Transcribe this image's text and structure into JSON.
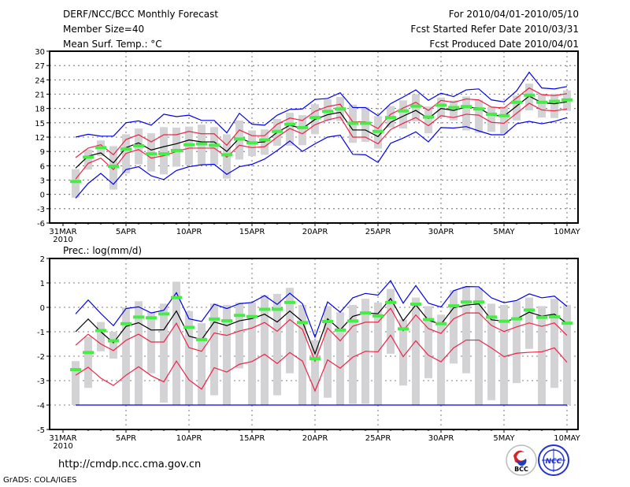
{
  "header": {
    "title": "DERF/NCC/BCC Monthly Forecast",
    "member_size": "Member Size=40",
    "variable": "Mean Surf. Temp.: °C",
    "period": "For 2010/04/01-2010/05/10",
    "started": "Fcst Started Refer Date 2010/03/31",
    "produced": "Fcst Produced Date 2010/04/01"
  },
  "footer": {
    "url": "http://cmdp.ncc.cma.gov.cn",
    "credit": "GrADS: COLA/IGES",
    "logos": [
      "BCC",
      "NCC"
    ]
  },
  "colors": {
    "obs": "#44ee44",
    "mean": "#000000",
    "spread": "#ee2244",
    "envelope": "#0000ee",
    "range": "#d3d3d6"
  },
  "chart_data": [
    {
      "type": "line",
      "title": "Mean Surf. Temp.: °C",
      "xlabel": "",
      "ylabel": "°C",
      "ylim": [
        -6,
        30
      ],
      "yticks": [
        -6,
        -3,
        0,
        3,
        6,
        9,
        12,
        15,
        18,
        21,
        24,
        27,
        30
      ],
      "xtick_labels": [
        "31MAR",
        "5APR",
        "10APR",
        "15APR",
        "20APR",
        "25APR",
        "30APR",
        "5MAY",
        "10MAY"
      ],
      "xtick_days": [
        0,
        5,
        10,
        15,
        20,
        25,
        30,
        35,
        40
      ],
      "year_label": "2010",
      "grid": true,
      "days": [
        1,
        2,
        3,
        4,
        5,
        6,
        7,
        8,
        9,
        10,
        11,
        12,
        13,
        14,
        15,
        16,
        17,
        18,
        19,
        20,
        21,
        22,
        23,
        24,
        25,
        26,
        27,
        28,
        29,
        30,
        31,
        32,
        33,
        34,
        35,
        36,
        37,
        38,
        39,
        40
      ],
      "range_min": [
        -0.7,
        5.2,
        8.0,
        1.0,
        4.4,
        6.3,
        4.8,
        4.2,
        5.8,
        6.2,
        6.2,
        6.2,
        3.3,
        7.3,
        8.0,
        8.3,
        10.2,
        10.2,
        10.3,
        12.6,
        15.4,
        15.4,
        10.8,
        11.0,
        9.6,
        14.0,
        13.8,
        15.3,
        12.8,
        16.1,
        15.5,
        13.4,
        12.9,
        13.1,
        12.7,
        15.5,
        17.6,
        16.1,
        16.0,
        17.5
      ],
      "range_max": [
        5.3,
        9.4,
        11.3,
        10.1,
        12.6,
        13.8,
        12.8,
        14.1,
        14.0,
        14.2,
        14.6,
        14.1,
        12.6,
        15.5,
        13.4,
        13.6,
        15.8,
        17.1,
        16.6,
        18.9,
        19.9,
        20.4,
        18.8,
        18.3,
        16.4,
        18.5,
        19.7,
        21.0,
        18.4,
        20.3,
        19.7,
        20.5,
        19.8,
        18.4,
        18.4,
        20.7,
        23.2,
        21.1,
        21.1,
        21.8
      ],
      "series": [
        {
          "name": "envelope_upper",
          "color": "#0000ee",
          "values": [
            12.0,
            12.6,
            12.2,
            12.2,
            15.0,
            15.4,
            14.5,
            16.8,
            16.3,
            16.6,
            15.5,
            15.5,
            12.9,
            17.0,
            14.7,
            14.5,
            16.6,
            17.8,
            17.9,
            19.9,
            20.1,
            21.3,
            18.2,
            18.2,
            16.5,
            19.0,
            20.4,
            21.9,
            19.7,
            21.2,
            20.5,
            21.9,
            22.1,
            19.8,
            19.4,
            21.7,
            25.6,
            22.3,
            22.1,
            22.6
          ]
        },
        {
          "name": "envelope_lower",
          "color": "#0000ee",
          "values": [
            -0.8,
            2.3,
            4.4,
            2.1,
            5.2,
            5.8,
            3.9,
            3.1,
            5.0,
            5.8,
            6.2,
            6.3,
            4.2,
            5.8,
            6.3,
            7.4,
            9.2,
            11.2,
            9.0,
            10.6,
            12.0,
            12.4,
            8.4,
            8.3,
            6.7,
            10.7,
            11.8,
            13.1,
            11.0,
            14.0,
            13.9,
            14.2,
            13.3,
            12.5,
            12.5,
            14.8,
            15.3,
            14.8,
            15.3,
            16.1
          ]
        },
        {
          "name": "spread_upper",
          "color": "#ee2244",
          "values": [
            7.7,
            9.7,
            10.4,
            8.3,
            11.5,
            12.5,
            11.0,
            12.5,
            12.5,
            13.2,
            12.7,
            12.7,
            10.3,
            13.5,
            12.3,
            12.3,
            14.7,
            16.0,
            15.5,
            17.4,
            18.4,
            18.9,
            15.2,
            15.2,
            13.8,
            16.8,
            18.1,
            19.3,
            17.6,
            19.7,
            19.3,
            20.0,
            19.8,
            18.3,
            18.1,
            20.2,
            22.3,
            20.9,
            20.7,
            21.1
          ]
        },
        {
          "name": "spread_lower",
          "color": "#ee2244",
          "values": [
            3.2,
            6.5,
            7.6,
            5.2,
            8.6,
            9.4,
            7.6,
            8.1,
            9.0,
            9.7,
            9.7,
            9.7,
            7.8,
            10.3,
            9.8,
            10.0,
            12.0,
            13.8,
            12.7,
            14.6,
            15.6,
            16.2,
            12.0,
            12.0,
            10.6,
            13.6,
            14.9,
            16.1,
            14.4,
            16.5,
            16.1,
            16.8,
            16.6,
            15.1,
            14.9,
            17.0,
            19.1,
            17.7,
            17.5,
            17.9
          ]
        },
        {
          "name": "ensemble_mean",
          "color": "#000000",
          "values": [
            5.5,
            8.0,
            8.7,
            6.6,
            9.8,
            10.8,
            9.3,
            10.0,
            10.6,
            11.4,
            11.0,
            11.0,
            9.0,
            11.8,
            10.8,
            11.0,
            13.0,
            14.5,
            13.8,
            15.7,
            16.7,
            17.2,
            13.5,
            13.5,
            12.1,
            15.1,
            16.4,
            17.6,
            15.9,
            18.0,
            17.6,
            18.3,
            18.1,
            16.6,
            16.4,
            18.5,
            20.6,
            19.2,
            19.0,
            19.4
          ]
        }
      ],
      "observed": [
        2.7,
        7.8,
        9.8,
        5.9,
        9.5,
        10.2,
        8.5,
        8.5,
        9.2,
        10.4,
        10.6,
        10.3,
        8.3,
        11.6,
        10.8,
        11.4,
        13.2,
        14.7,
        14.0,
        16.1,
        17.4,
        17.9,
        14.9,
        14.9,
        13.2,
        16.1,
        17.5,
        18.5,
        16.2,
        18.7,
        18.2,
        18.4,
        17.9,
        16.8,
        16.5,
        19.3,
        20.8,
        19.3,
        19.5,
        19.8
      ]
    },
    {
      "type": "line",
      "title": "Prec.: log(mm/d)",
      "xlabel": "",
      "ylabel": "log(mm/d)",
      "ylim": [
        -5,
        2
      ],
      "yticks": [
        -5,
        -4,
        -3,
        -2,
        -1,
        0,
        1,
        2
      ],
      "xtick_labels": [
        "31MAR",
        "5APR",
        "10APR",
        "15APR",
        "20APR",
        "25APR",
        "30APR",
        "5MAY",
        "10MAY"
      ],
      "xtick_days": [
        0,
        5,
        10,
        15,
        20,
        25,
        30,
        35,
        40
      ],
      "year_label": "2010",
      "grid": true,
      "days": [
        1,
        2,
        3,
        4,
        5,
        6,
        7,
        8,
        9,
        10,
        11,
        12,
        13,
        14,
        15,
        16,
        17,
        18,
        19,
        20,
        21,
        22,
        23,
        24,
        25,
        26,
        27,
        28,
        29,
        30,
        31,
        32,
        33,
        34,
        35,
        36,
        37,
        38,
        39,
        40
      ],
      "range_min": [
        -4,
        -3.3,
        -1.8,
        -2.1,
        -4,
        -4,
        -2.7,
        -3.9,
        -4,
        -4,
        -4,
        -3.6,
        -4,
        -2.5,
        -4,
        -4,
        -3.6,
        -2.7,
        -4,
        -4,
        -3.7,
        -4,
        -3.95,
        -3.95,
        -4,
        -1.9,
        -3.2,
        -4,
        -2.9,
        -4,
        -2.3,
        -2.7,
        -4,
        -3.8,
        -4,
        -3.1,
        -1.7,
        -4,
        -3.3,
        -4
      ],
      "range_max": [
        -2.2,
        -1.2,
        -0.6,
        -1.0,
        0,
        0.25,
        -0.2,
        0.15,
        1.05,
        -0.15,
        -0.65,
        0.15,
        0.1,
        0.2,
        0.2,
        0.5,
        0.55,
        0.8,
        0.1,
        -1.35,
        0.05,
        -0.2,
        0.1,
        0.35,
        0.2,
        0.75,
        -0.5,
        0.4,
        0.05,
        -0.3,
        0.7,
        0.85,
        0.8,
        0.15,
        0.1,
        0.25,
        0.4,
        0.05,
        0.35,
        0.1
      ],
      "series": [
        {
          "name": "envelope_upper",
          "color": "#0000ee",
          "values": [
            -0.27,
            0.3,
            -0.25,
            -0.75,
            -0.05,
            0.02,
            -0.23,
            -0.12,
            0.6,
            -0.47,
            -0.58,
            0.13,
            -0.05,
            0.15,
            0.2,
            0.48,
            0.12,
            0.58,
            0.15,
            -1.22,
            0.22,
            -0.2,
            0.39,
            0.57,
            0.5,
            1.09,
            0.17,
            0.89,
            0.17,
            0.01,
            0.68,
            0.85,
            0.84,
            0.39,
            0.19,
            0.28,
            0.55,
            0.39,
            0.46,
            0.04
          ]
        },
        {
          "name": "envelope_lower",
          "color": "#0000ee",
          "values": [
            -4,
            -4,
            -4,
            -4,
            -4,
            -4,
            -4,
            -4,
            -4,
            -4,
            -4,
            -4,
            -4,
            -4,
            -4,
            -4,
            -4,
            -4,
            -4,
            -4,
            -4,
            -4,
            -4,
            -4,
            -4,
            -4,
            -4,
            -4,
            -4,
            -4,
            -4,
            -4,
            -4,
            -4,
            -4,
            -4,
            -4,
            -4,
            -4,
            -4
          ]
        },
        {
          "name": "spread_upper",
          "color": "#ee2244",
          "values": [
            -1.55,
            -1.1,
            -1.5,
            -1.77,
            -1.35,
            -1.1,
            -1.42,
            -1.42,
            -0.65,
            -1.65,
            -1.8,
            -1.05,
            -1.15,
            -0.97,
            -0.85,
            -0.62,
            -0.98,
            -0.5,
            -0.9,
            -2.2,
            -0.85,
            -1.37,
            -0.77,
            -0.61,
            -0.61,
            -0.04,
            -0.96,
            -0.31,
            -0.87,
            -1.07,
            -0.47,
            -0.23,
            -0.23,
            -0.74,
            -0.99,
            -0.8,
            -0.64,
            -0.78,
            -0.64,
            -1.15
          ]
        },
        {
          "name": "spread_lower",
          "color": "#ee2244",
          "values": [
            -2.78,
            -2.45,
            -2.9,
            -3.2,
            -2.78,
            -2.43,
            -2.8,
            -3.05,
            -2.2,
            -2.97,
            -3.35,
            -2.47,
            -2.65,
            -2.33,
            -2.22,
            -1.92,
            -2.3,
            -1.85,
            -2.2,
            -3.42,
            -2.15,
            -2.49,
            -2.04,
            -1.8,
            -1.82,
            -1.14,
            -2.02,
            -1.37,
            -1.96,
            -2.23,
            -1.66,
            -1.34,
            -1.34,
            -1.66,
            -2.02,
            -1.88,
            -1.84,
            -1.82,
            -1.66,
            -2.25
          ]
        },
        {
          "name": "ensemble_mean",
          "color": "#000000",
          "values": [
            -1.0,
            -0.48,
            -1.0,
            -1.45,
            -0.78,
            -0.63,
            -0.93,
            -0.92,
            -0.15,
            -1.18,
            -1.32,
            -0.6,
            -0.75,
            -0.55,
            -0.46,
            -0.28,
            -0.6,
            -0.15,
            -0.58,
            -1.9,
            -0.47,
            -0.92,
            -0.37,
            -0.23,
            -0.26,
            0.36,
            -0.55,
            0.1,
            -0.53,
            -0.69,
            -0.02,
            0.09,
            0.14,
            -0.51,
            -0.57,
            -0.47,
            -0.2,
            -0.36,
            -0.28,
            -0.66
          ]
        }
      ],
      "observed": [
        -2.55,
        -1.85,
        -0.95,
        -1.37,
        -0.67,
        -0.4,
        -0.43,
        -0.27,
        0.4,
        -0.82,
        -1.32,
        -0.48,
        -0.55,
        -0.33,
        -0.38,
        -0.08,
        -0.08,
        0.2,
        -0.62,
        -2.1,
        -0.58,
        -0.93,
        -0.56,
        -0.23,
        -0.35,
        0.2,
        -0.88,
        0.13,
        -0.5,
        -0.67,
        0.06,
        0.22,
        0.22,
        -0.4,
        -0.57,
        -0.47,
        -0.11,
        -0.41,
        -0.39,
        -0.65
      ]
    }
  ]
}
